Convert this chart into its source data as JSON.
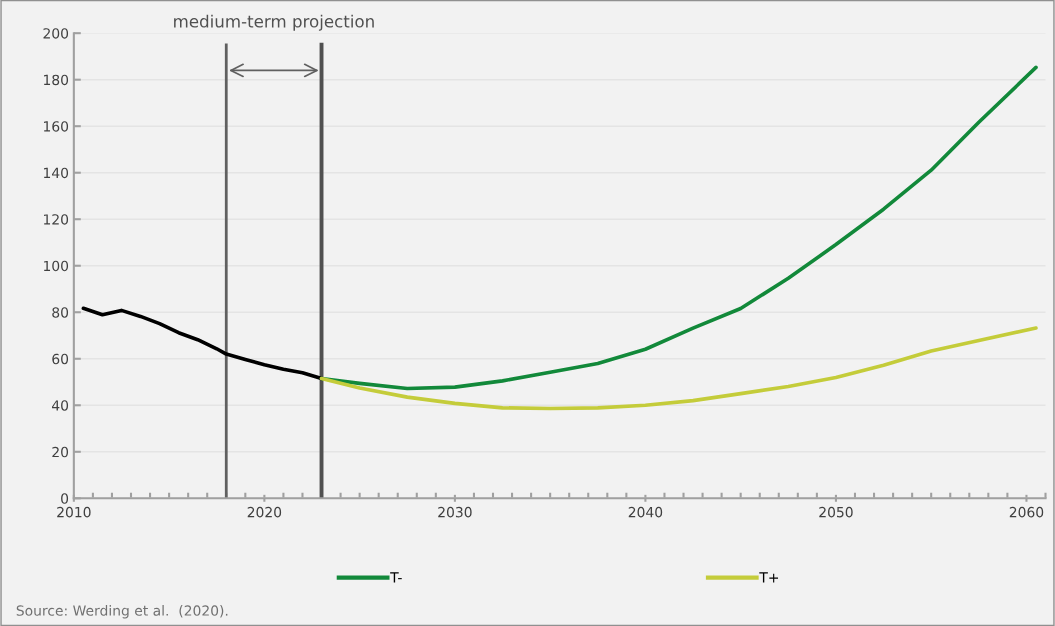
{
  "chart_data": {
    "type": "line",
    "annotations": [
      "medium-term projection",
      "Source: Werding et al.  (2020)."
    ],
    "series": [
      {
        "color": "#000000",
        "x": [
          2010.5,
          2011.5,
          2012.5,
          2013.5,
          2014.5,
          2015.5,
          2016.5,
          2017.5,
          2018,
          2019,
          2020,
          2021,
          2022,
          2023
        ],
        "values": [
          81.7,
          78.9,
          80.8,
          78.2,
          75.1,
          71.2,
          68.2,
          64.3,
          62.0,
          59.7,
          57.4,
          55.5,
          54.0,
          51.5
        ]
      },
      {
        "name": "T-",
        "color": "#12893a",
        "x": [
          2023,
          2025,
          2027.5,
          2030,
          2032.5,
          2035,
          2037.5,
          2040,
          2042.5,
          2045,
          2047.5,
          2050,
          2052.5,
          2055,
          2057.5,
          2060.5
        ],
        "values": [
          51.5,
          49.4,
          47.2,
          47.8,
          50.5,
          54.2,
          58.0,
          64.1,
          73.2,
          81.6,
          94.6,
          109.1,
          124.3,
          141.1,
          161.7,
          185.3
        ]
      },
      {
        "name": "T+",
        "color": "#c4cc3a",
        "x": [
          2023,
          2025,
          2027.5,
          2030,
          2032.5,
          2035,
          2037.5,
          2040,
          2042.5,
          2045,
          2047.5,
          2050,
          2052.5,
          2055,
          2057.5,
          2060.5
        ],
        "values": [
          51.5,
          47.4,
          43.5,
          40.8,
          38.9,
          38.6,
          38.9,
          40.0,
          42.0,
          45.0,
          48.1,
          51.9,
          57.2,
          63.3,
          67.9,
          73.2
        ]
      }
    ],
    "xlim": [
      2010,
      2061
    ],
    "xticks": [
      2010,
      2020,
      2030,
      2040,
      2050,
      2060
    ],
    "ylim": [
      0,
      200
    ],
    "yticks": [
      0,
      20,
      40,
      60,
      80,
      100,
      120,
      140,
      160,
      180,
      200
    ],
    "ref_lines": [
      {
        "axis": "x",
        "value": 2018,
        "color": "#606060"
      },
      {
        "axis": "x",
        "value": 2023,
        "color": "#505050"
      }
    ],
    "grid": "y",
    "legend": "bottom",
    "marker": "none",
    "line_style": "solid"
  }
}
